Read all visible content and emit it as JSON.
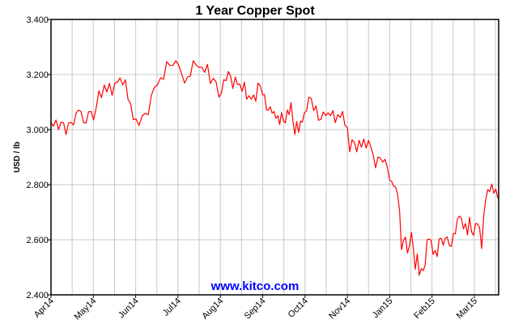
{
  "chart_data": {
    "type": "line",
    "title": "1 Year Copper Spot",
    "xlabel": "",
    "ylabel": "USD / lb",
    "ylim": [
      2.4,
      3.4
    ],
    "yticks": [
      "2.400",
      "2.600",
      "2.800",
      "3.000",
      "3.200",
      "3.400"
    ],
    "ytick_values": [
      2.4,
      2.6,
      2.8,
      3.0,
      3.2,
      3.4
    ],
    "grid": true,
    "x_axis": "ordinal sample index",
    "xticks": [
      {
        "label": "Apr14",
        "at": 0
      },
      {
        "label": "May14",
        "at": 16.9
      },
      {
        "label": "Jun14",
        "at": 32.9
      },
      {
        "label": "Jul14",
        "at": 46.7
      },
      {
        "label": "Aug14",
        "at": 61.5
      },
      {
        "label": "Sep14",
        "at": 80
      },
      {
        "label": "Oct14",
        "at": 102.4
      },
      {
        "label": "Nov14",
        "at": 120
      },
      {
        "label": "Jan15",
        "at": 138
      },
      {
        "label": "Feb15",
        "at": 159.5
      },
      {
        "label": "Mar15",
        "at": 180.4
      }
    ],
    "series": [
      {
        "color": "#ff0000",
        "values": [
          3.025,
          3.012,
          3.035,
          3.0,
          3.027,
          3.025,
          2.982,
          3.024,
          3.026,
          3.017,
          3.059,
          3.071,
          3.066,
          3.025,
          3.024,
          3.065,
          3.066,
          3.035,
          3.08,
          3.141,
          3.116,
          3.162,
          3.137,
          3.168,
          3.124,
          3.169,
          3.172,
          3.188,
          3.162,
          3.181,
          3.11,
          3.094,
          3.036,
          3.039,
          3.015,
          3.05,
          3.059,
          3.054,
          3.124,
          3.153,
          3.162,
          3.188,
          3.183,
          3.247,
          3.233,
          3.233,
          3.25,
          3.232,
          3.201,
          3.169,
          3.191,
          3.194,
          3.25,
          3.235,
          3.226,
          3.227,
          3.208,
          3.237,
          3.167,
          3.186,
          3.174,
          3.118,
          3.132,
          3.181,
          3.178,
          3.211,
          3.194,
          3.149,
          3.191,
          3.164,
          3.165,
          3.139,
          3.172,
          3.11,
          3.123,
          3.11,
          3.126,
          3.103,
          3.169,
          3.157,
          3.126,
          3.127,
          3.071,
          3.071,
          3.083,
          3.059,
          3.066,
          3.041,
          3.051,
          3.018,
          3.062,
          3.031,
          3.025,
          3.071,
          3.054,
          3.098,
          3.029,
          2.982,
          3.029,
          2.99,
          3.031,
          3.027,
          3.061,
          3.067,
          3.118,
          3.113,
          3.069,
          3.086,
          3.034,
          3.037,
          3.064,
          3.051,
          3.061,
          3.051,
          3.069,
          3.025,
          3.054,
          3.044,
          3.066,
          3.015,
          3.008,
          2.919,
          2.963,
          2.953,
          2.919,
          2.961,
          2.936,
          2.966,
          2.933,
          2.961,
          2.936,
          2.907,
          2.861,
          2.9,
          2.897,
          2.882,
          2.892,
          2.863,
          2.816,
          2.812,
          2.794,
          2.792,
          2.765,
          2.706,
          2.564,
          2.598,
          2.61,
          2.552,
          2.576,
          2.627,
          2.568,
          2.492,
          2.549,
          2.471,
          2.495,
          2.488,
          2.508,
          2.6,
          2.603,
          2.598,
          2.547,
          2.561,
          2.539,
          2.603,
          2.606,
          2.58,
          2.606,
          2.61,
          2.579,
          2.576,
          2.622,
          2.622,
          2.674,
          2.686,
          2.678,
          2.639,
          2.659,
          2.618,
          2.681,
          2.629,
          2.616,
          2.659,
          2.657,
          2.642,
          2.568,
          2.686,
          2.745,
          2.782,
          2.775,
          2.802,
          2.769,
          2.784,
          2.75
        ]
      }
    ],
    "grid_color": "#c8c8c8"
  },
  "watermark": {
    "text": "www.kitco.com",
    "color": "#0000ff"
  }
}
